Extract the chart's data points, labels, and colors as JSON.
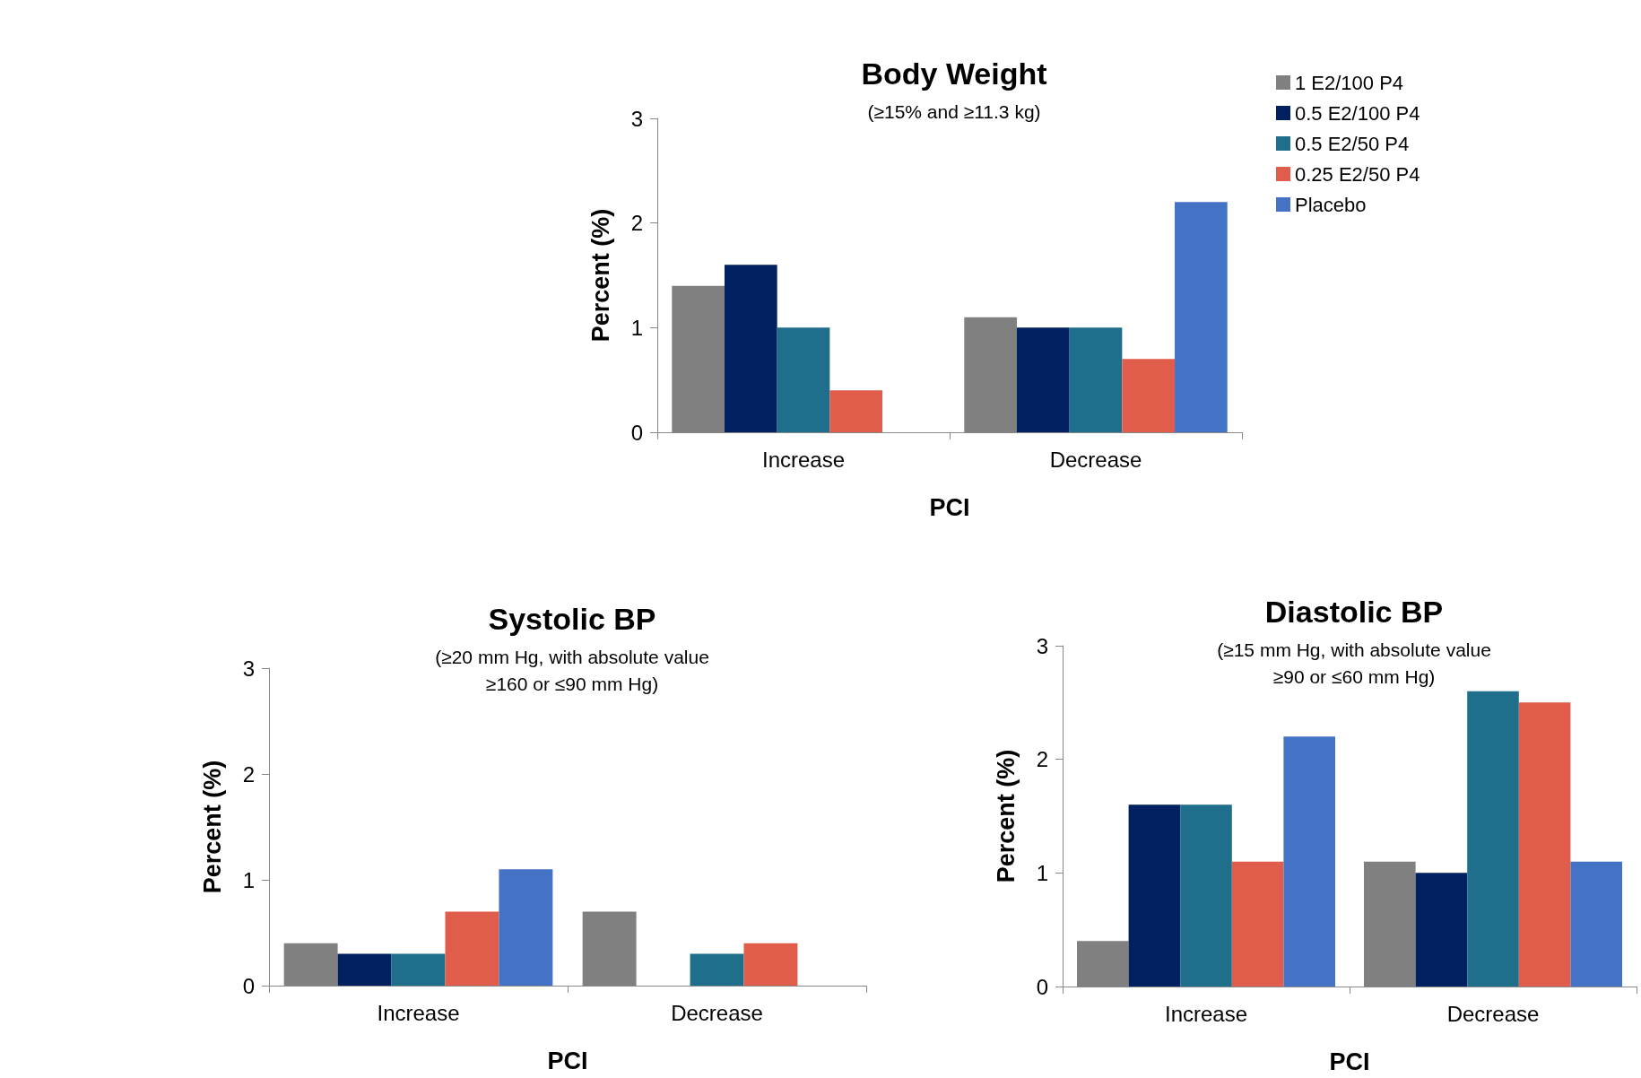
{
  "chart_data": [
    {
      "type": "bar",
      "title": "Body Weight",
      "subtitle": "(≥15% and ≥11.3 kg)",
      "xlabel": "PCI",
      "ylabel": "Percent (%)",
      "categories": [
        "Increase",
        "Decrease"
      ],
      "series": [
        {
          "name": "1 E2/100 P4",
          "color": "#808080",
          "values": [
            1.4,
            1.1
          ]
        },
        {
          "name": "0.5 E2/100 P4",
          "color": "#002060",
          "values": [
            1.6,
            1.0
          ]
        },
        {
          "name": "0.5 E2/50 P4",
          "color": "#1f6e8c",
          "values": [
            1.0,
            1.0
          ]
        },
        {
          "name": "0.25 E2/50 P4",
          "color": "#e05c4b",
          "values": [
            0.4,
            0.7
          ]
        },
        {
          "name": "Placebo",
          "color": "#4472c4",
          "values": [
            0,
            2.2
          ]
        }
      ],
      "ylim": [
        0,
        3
      ],
      "yticks": [
        0,
        1,
        2,
        3
      ],
      "grid": false,
      "legend": "right"
    },
    {
      "type": "bar",
      "title": "Systolic BP",
      "subtitle": "(≥20 mm Hg, with absolute value\n≥160 or ≤90 mm Hg)",
      "xlabel": "PCI",
      "ylabel": "Percent (%)",
      "categories": [
        "Increase",
        "Decrease"
      ],
      "series": [
        {
          "color": "#808080",
          "values": [
            0.4,
            0.7
          ]
        },
        {
          "color": "#002060",
          "values": [
            0.3,
            0
          ]
        },
        {
          "color": "#1f6e8c",
          "values": [
            0.3,
            0.3
          ]
        },
        {
          "color": "#e05c4b",
          "values": [
            0.7,
            0.4
          ]
        },
        {
          "color": "#4472c4",
          "values": [
            1.1,
            0
          ]
        }
      ],
      "ylim": [
        0,
        3
      ],
      "yticks": [
        0,
        1,
        2,
        3
      ],
      "grid": false
    },
    {
      "type": "bar",
      "title": "Diastolic BP",
      "subtitle": "(≥15 mm Hg, with absolute value\n≥90 or ≤60 mm Hg)",
      "xlabel": "PCI",
      "ylabel": "Percent (%)",
      "categories": [
        "Increase",
        "Decrease"
      ],
      "series": [
        {
          "color": "#808080",
          "values": [
            0.4,
            1.1
          ]
        },
        {
          "color": "#002060",
          "values": [
            1.6,
            1.0
          ]
        },
        {
          "color": "#1f6e8c",
          "values": [
            1.6,
            2.6
          ]
        },
        {
          "color": "#e05c4b",
          "values": [
            1.1,
            2.5
          ]
        },
        {
          "color": "#4472c4",
          "values": [
            2.2,
            1.1
          ]
        }
      ],
      "ylim": [
        0,
        3
      ],
      "yticks": [
        0,
        1,
        2,
        3
      ],
      "grid": false
    }
  ]
}
